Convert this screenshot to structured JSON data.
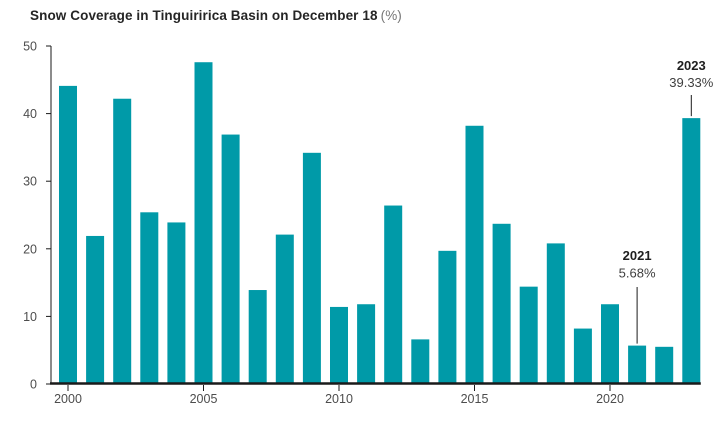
{
  "chart": {
    "title_bold": "Snow Coverage in Tinguiririca Basin on December 18",
    "title_unit": "(%)"
  },
  "chart_data": {
    "type": "bar",
    "title": "Snow Coverage in Tinguiririca Basin on December 18 (%)",
    "xlabel": "",
    "ylabel": "",
    "ylim": [
      0,
      50
    ],
    "yticks": [
      0,
      10,
      20,
      30,
      40,
      50
    ],
    "xticks": [
      2000,
      2005,
      2010,
      2015,
      2020
    ],
    "grid": false,
    "legend": "none",
    "bar_color": "#009aa8",
    "axis_color": "#1a1a1a",
    "label_color": "#4d4d4d",
    "categories": [
      2000,
      2001,
      2002,
      2003,
      2004,
      2005,
      2006,
      2007,
      2008,
      2009,
      2010,
      2011,
      2012,
      2013,
      2014,
      2015,
      2016,
      2017,
      2018,
      2019,
      2020,
      2021,
      2022,
      2023
    ],
    "values": [
      44.1,
      21.9,
      42.2,
      25.4,
      23.9,
      47.6,
      36.9,
      13.9,
      22.1,
      34.2,
      11.4,
      11.8,
      26.4,
      6.6,
      19.7,
      38.2,
      23.7,
      14.4,
      20.8,
      8.2,
      11.8,
      5.68,
      5.5,
      39.33
    ],
    "annotations": [
      {
        "year": 2021,
        "label": "2021",
        "value_label": "5.68%"
      },
      {
        "year": 2023,
        "label": "2023",
        "value_label": "39.33%"
      }
    ]
  }
}
